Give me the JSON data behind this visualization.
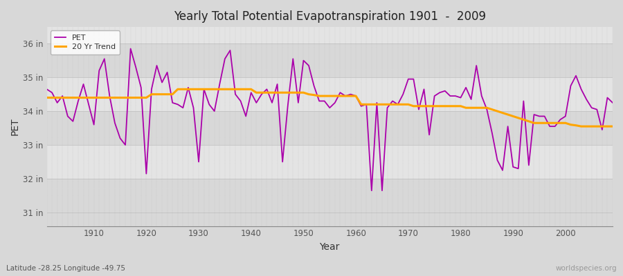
{
  "title": "Yearly Total Potential Evapotranspiration 1901  -  2009",
  "xlabel": "Year",
  "ylabel": "PET",
  "subtitle": "Latitude -28.25 Longitude -49.75",
  "watermark": "worldspecies.org",
  "pet_color": "#aa00aa",
  "trend_color": "#ffa500",
  "background_color": "#d8d8d8",
  "plot_bg_color": "#d8d8d8",
  "band_color_light": "#e8e8e8",
  "band_color_mid": "#d0d0d0",
  "ylim_min": 30.6,
  "ylim_max": 36.5,
  "yticks": [
    31,
    32,
    33,
    34,
    35,
    36
  ],
  "ytick_labels": [
    "31 in",
    "32 in",
    "33 in",
    "34 in",
    "35 in",
    "36 in"
  ],
  "xtick_positions": [
    1910,
    1920,
    1930,
    1940,
    1950,
    1960,
    1970,
    1980,
    1990,
    2000
  ],
  "years": [
    1901,
    1902,
    1903,
    1904,
    1905,
    1906,
    1907,
    1908,
    1909,
    1910,
    1911,
    1912,
    1913,
    1914,
    1915,
    1916,
    1917,
    1918,
    1919,
    1920,
    1921,
    1922,
    1923,
    1924,
    1925,
    1926,
    1927,
    1928,
    1929,
    1930,
    1931,
    1932,
    1933,
    1934,
    1935,
    1936,
    1937,
    1938,
    1939,
    1940,
    1941,
    1942,
    1943,
    1944,
    1945,
    1946,
    1947,
    1948,
    1949,
    1950,
    1951,
    1952,
    1953,
    1954,
    1955,
    1956,
    1957,
    1958,
    1959,
    1960,
    1961,
    1962,
    1963,
    1964,
    1965,
    1966,
    1967,
    1968,
    1969,
    1970,
    1971,
    1972,
    1973,
    1974,
    1975,
    1976,
    1977,
    1978,
    1979,
    1980,
    1981,
    1982,
    1983,
    1984,
    1985,
    1986,
    1987,
    1988,
    1989,
    1990,
    1991,
    1992,
    1993,
    1994,
    1995,
    1996,
    1997,
    1998,
    1999,
    2000,
    2001,
    2002,
    2003,
    2004,
    2005,
    2006,
    2007,
    2008,
    2009
  ],
  "pet_values": [
    34.65,
    34.55,
    34.25,
    34.45,
    33.85,
    33.7,
    34.3,
    34.8,
    34.2,
    33.6,
    35.2,
    35.55,
    34.45,
    33.65,
    33.2,
    33.0,
    35.85,
    35.3,
    34.7,
    32.15,
    34.65,
    35.35,
    34.85,
    35.15,
    34.25,
    34.2,
    34.1,
    34.7,
    34.1,
    32.5,
    34.65,
    34.2,
    34.0,
    34.8,
    35.55,
    35.8,
    34.5,
    34.3,
    33.85,
    34.55,
    34.25,
    34.5,
    34.65,
    34.25,
    34.8,
    32.5,
    34.15,
    35.55,
    34.25,
    35.5,
    35.35,
    34.75,
    34.3,
    34.3,
    34.1,
    34.25,
    34.55,
    34.45,
    34.5,
    34.45,
    34.15,
    34.2,
    31.65,
    34.25,
    31.65,
    34.1,
    34.3,
    34.2,
    34.5,
    34.95,
    34.95,
    34.05,
    34.65,
    33.3,
    34.45,
    34.55,
    34.6,
    34.45,
    34.45,
    34.4,
    34.7,
    34.35,
    35.35,
    34.45,
    34.05,
    33.35,
    32.55,
    32.25,
    33.55,
    32.35,
    32.3,
    34.3,
    32.4,
    33.9,
    33.85,
    33.85,
    33.55,
    33.55,
    33.75,
    33.85,
    34.75,
    35.05,
    34.65,
    34.35,
    34.1,
    34.05,
    33.45,
    34.4,
    34.25
  ],
  "trend_values": [
    34.4,
    34.4,
    34.4,
    34.4,
    34.4,
    34.4,
    34.4,
    34.4,
    34.4,
    34.4,
    34.4,
    34.4,
    34.4,
    34.4,
    34.4,
    34.4,
    34.4,
    34.4,
    34.4,
    34.4,
    34.5,
    34.5,
    34.5,
    34.5,
    34.5,
    34.65,
    34.65,
    34.65,
    34.65,
    34.65,
    34.65,
    34.65,
    34.65,
    34.65,
    34.65,
    34.65,
    34.65,
    34.65,
    34.65,
    34.65,
    34.55,
    34.55,
    34.55,
    34.55,
    34.55,
    34.55,
    34.55,
    34.55,
    34.55,
    34.55,
    34.5,
    34.48,
    34.45,
    34.45,
    34.45,
    34.45,
    34.45,
    34.45,
    34.45,
    34.45,
    34.2,
    34.2,
    34.2,
    34.2,
    34.2,
    34.2,
    34.2,
    34.2,
    34.2,
    34.2,
    34.15,
    34.15,
    34.15,
    34.15,
    34.15,
    34.15,
    34.15,
    34.15,
    34.15,
    34.15,
    34.1,
    34.1,
    34.1,
    34.1,
    34.1,
    34.05,
    34.0,
    33.95,
    33.9,
    33.85,
    33.8,
    33.75,
    33.7,
    33.65,
    33.65,
    33.65,
    33.65,
    33.65,
    33.65,
    33.65,
    33.6,
    33.58,
    33.55,
    33.55,
    33.55,
    33.55,
    33.55,
    33.55,
    33.55
  ]
}
